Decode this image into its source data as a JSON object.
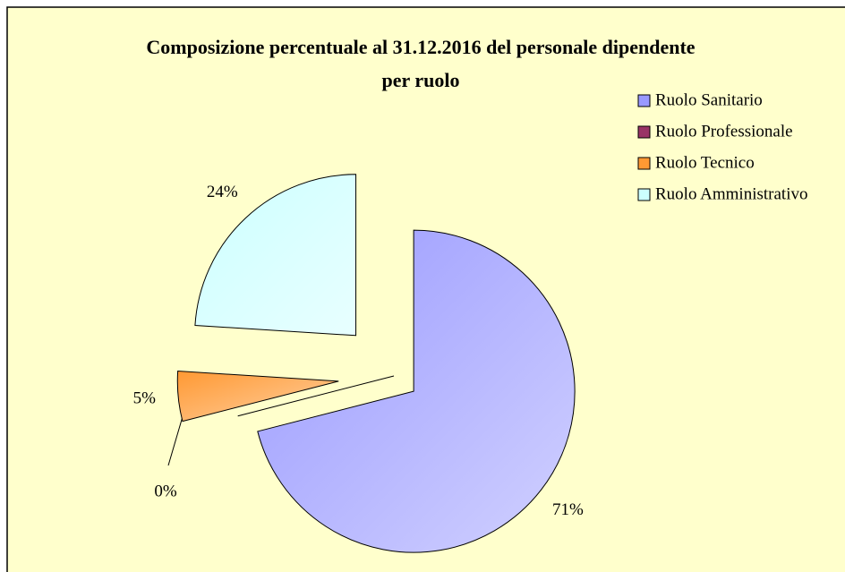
{
  "chart_data": {
    "type": "pie",
    "title": "Composizione percentuale al 31.12.2016 del personale dipendente per ruolo",
    "categories": [
      "Ruolo Sanitario",
      "Ruolo Professionale",
      "Ruolo Tecnico",
      "Ruolo Amministrativo"
    ],
    "values": [
      71,
      0,
      5,
      24
    ],
    "value_labels": [
      "71%",
      "0%",
      "5%",
      "24%"
    ],
    "colors": [
      "#9999ff",
      "#993366",
      "#ff9933",
      "#ccffff"
    ],
    "legend": "right"
  }
}
